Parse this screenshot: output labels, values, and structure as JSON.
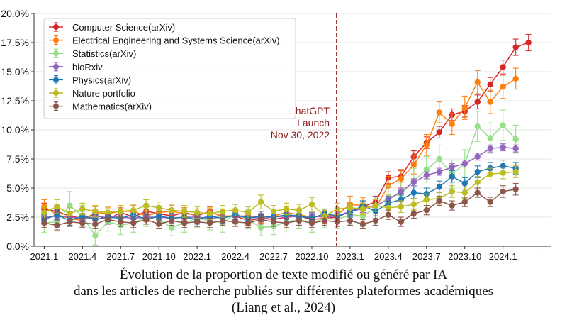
{
  "chart_data": {
    "type": "line",
    "title": "",
    "xlabel": "",
    "ylabel": "",
    "ylim": [
      0,
      20
    ],
    "y_ticks": [
      0,
      2.5,
      5,
      7.5,
      10,
      12.5,
      15,
      17.5,
      20
    ],
    "y_tick_labels": [
      "0.0%",
      "2.5%",
      "5.0%",
      "7.5%",
      "10.0%",
      "12.5%",
      "15.0%",
      "17.5%",
      "20.0%"
    ],
    "x_tick_positions": [
      0,
      3,
      6,
      9,
      12,
      15,
      18,
      21,
      24,
      27,
      30,
      33,
      36,
      39
    ],
    "x_tick_labels": [
      "2021.1",
      "2021.4",
      "2021.7",
      "2021.10",
      "2022.1",
      "2022.4",
      "2022.7",
      "2022.10",
      "2023.1",
      "2023.4",
      "2023.7",
      "2023.10",
      "2024.1",
      ""
    ],
    "x_range": [
      -0.8,
      39.8
    ],
    "grid": "horizontal",
    "legend_position": "top-left",
    "annotation": {
      "x": 22.95,
      "lines": [
        "ChatGPT",
        "Launch",
        "Nov 30, 2022"
      ],
      "color": "#8b1a1a"
    },
    "series": [
      {
        "name": "Computer Science(arXiv)",
        "color": "#d62728",
        "values": [
          3.2,
          3.0,
          2.6,
          2.4,
          2.7,
          2.3,
          2.9,
          2.5,
          3.0,
          2.8,
          2.6,
          2.9,
          2.6,
          3.0,
          2.5,
          2.6,
          2.2,
          2.4,
          2.3,
          2.5,
          2.6,
          2.3,
          2.4,
          2.5,
          3.0,
          3.4,
          3.8,
          5.9,
          6.0,
          7.7,
          8.9,
          9.8,
          11.3,
          11.6,
          12.4,
          13.9,
          15.4,
          17.1,
          17.5
        ],
        "errors": [
          0.5,
          0.5,
          0.4,
          0.4,
          0.4,
          0.4,
          0.4,
          0.4,
          0.4,
          0.4,
          0.4,
          0.4,
          0.4,
          0.4,
          0.4,
          0.4,
          0.4,
          0.4,
          0.4,
          0.4,
          0.4,
          0.4,
          0.4,
          0.4,
          0.5,
          0.5,
          0.5,
          0.5,
          0.5,
          0.5,
          0.5,
          0.5,
          0.5,
          0.5,
          0.6,
          0.6,
          0.6,
          0.7,
          0.7
        ]
      },
      {
        "name": "Electrical Engineering and Systems Science(arXiv)",
        "color": "#ff7f0e",
        "values": [
          3.4,
          2.7,
          2.4,
          2.2,
          2.9,
          2.8,
          3.0,
          3.0,
          2.6,
          2.9,
          3.0,
          2.8,
          2.7,
          2.9,
          2.6,
          2.6,
          2.6,
          2.5,
          2.6,
          2.9,
          2.7,
          2.5,
          2.6,
          2.7,
          3.6,
          3.5,
          3.3,
          5.2,
          5.8,
          7.0,
          8.7,
          11.5,
          10.5,
          11.9,
          14.1,
          12.4,
          13.7,
          14.4
        ],
        "errors": [
          0.6,
          0.6,
          0.6,
          0.5,
          0.5,
          0.5,
          0.5,
          0.5,
          0.5,
          0.5,
          0.5,
          0.5,
          0.5,
          0.5,
          0.5,
          0.5,
          0.5,
          0.5,
          0.5,
          0.5,
          0.5,
          0.5,
          0.5,
          0.5,
          0.7,
          0.7,
          0.7,
          0.8,
          0.8,
          0.8,
          0.9,
          0.9,
          0.9,
          1.0,
          1.0,
          1.0,
          1.0,
          0.9
        ]
      },
      {
        "name": "Statistics(arXiv)",
        "color": "#98df8a",
        "values": [
          2.0,
          2.1,
          3.5,
          2.6,
          0.9,
          2.1,
          1.8,
          2.0,
          2.5,
          2.3,
          1.6,
          2.0,
          2.4,
          2.2,
          2.0,
          2.8,
          2.3,
          1.6,
          1.7,
          2.1,
          2.3,
          2.0,
          2.4,
          2.3,
          2.7,
          2.6,
          3.3,
          4.2,
          4.5,
          5.6,
          6.6,
          7.5,
          6.2,
          7.1,
          10.3,
          9.3,
          10.4,
          9.2
        ],
        "errors": [
          0.8,
          0.8,
          1.2,
          0.9,
          0.8,
          0.8,
          0.8,
          0.8,
          0.8,
          0.8,
          0.7,
          0.8,
          0.8,
          0.8,
          0.8,
          0.8,
          0.8,
          0.7,
          0.7,
          0.8,
          0.8,
          0.8,
          0.8,
          0.8,
          0.9,
          0.9,
          0.9,
          1.0,
          1.0,
          1.1,
          1.1,
          1.2,
          1.2,
          1.2,
          1.3,
          1.3,
          1.3,
          1.2
        ]
      },
      {
        "name": "bioRxiv",
        "color": "#9467bd",
        "values": [
          2.5,
          2.6,
          2.5,
          2.4,
          2.5,
          2.6,
          2.5,
          2.4,
          2.5,
          2.5,
          2.4,
          2.5,
          2.5,
          2.4,
          2.5,
          2.6,
          2.5,
          2.4,
          2.5,
          2.6,
          2.5,
          2.6,
          2.5,
          2.6,
          3.0,
          3.2,
          3.5,
          4.0,
          4.7,
          5.5,
          6.1,
          6.4,
          6.8,
          7.1,
          7.7,
          8.4,
          8.5,
          8.4
        ],
        "errors": [
          0.3,
          0.3,
          0.3,
          0.3,
          0.3,
          0.3,
          0.3,
          0.3,
          0.3,
          0.3,
          0.3,
          0.3,
          0.3,
          0.3,
          0.3,
          0.3,
          0.3,
          0.3,
          0.3,
          0.3,
          0.3,
          0.3,
          0.3,
          0.3,
          0.3,
          0.3,
          0.3,
          0.3,
          0.3,
          0.3,
          0.3,
          0.3,
          0.3,
          0.3,
          0.3,
          0.3,
          0.3,
          0.3
        ]
      },
      {
        "name": "Physics(arXiv)",
        "color": "#1f77b4",
        "values": [
          2.3,
          2.7,
          2.2,
          2.6,
          2.3,
          2.5,
          2.4,
          2.7,
          2.3,
          2.6,
          2.4,
          2.5,
          2.3,
          2.6,
          2.4,
          2.7,
          2.4,
          2.6,
          2.5,
          2.7,
          2.6,
          2.4,
          2.8,
          2.6,
          2.9,
          3.5,
          3.0,
          3.7,
          4.0,
          4.6,
          4.5,
          5.1,
          6.0,
          5.4,
          6.4,
          6.7,
          6.9,
          6.7
        ],
        "errors": [
          0.4,
          0.4,
          0.4,
          0.4,
          0.4,
          0.4,
          0.4,
          0.4,
          0.4,
          0.4,
          0.4,
          0.4,
          0.4,
          0.4,
          0.4,
          0.4,
          0.4,
          0.4,
          0.4,
          0.4,
          0.4,
          0.4,
          0.4,
          0.4,
          0.4,
          0.4,
          0.4,
          0.4,
          0.5,
          0.5,
          0.5,
          0.5,
          0.5,
          0.5,
          0.5,
          0.5,
          0.5,
          0.5
        ]
      },
      {
        "name": "Nature portfolio",
        "color": "#bcbd22",
        "values": [
          2.9,
          3.4,
          2.8,
          3.2,
          3.0,
          2.9,
          3.0,
          3.1,
          3.5,
          3.3,
          3.1,
          3.0,
          2.9,
          2.8,
          3.0,
          3.1,
          2.9,
          3.8,
          3.0,
          3.2,
          3.1,
          3.6,
          2.6,
          3.2,
          3.3,
          3.2,
          3.5,
          3.3,
          3.4,
          3.6,
          4.0,
          4.1,
          4.7,
          4.6,
          5.5,
          6.2,
          6.3,
          6.4
        ],
        "errors": [
          0.5,
          0.6,
          0.5,
          0.5,
          0.5,
          0.5,
          0.5,
          0.5,
          0.5,
          0.5,
          0.5,
          0.5,
          0.5,
          0.5,
          0.5,
          0.5,
          0.5,
          0.6,
          0.5,
          0.5,
          0.5,
          0.6,
          0.5,
          0.5,
          0.5,
          0.5,
          0.5,
          0.5,
          0.5,
          0.5,
          0.5,
          0.5,
          0.5,
          0.5,
          0.5,
          0.5,
          0.5,
          0.5
        ]
      },
      {
        "name": "Mathematics(arXiv)",
        "color": "#8c564b",
        "values": [
          2.0,
          1.8,
          2.1,
          2.0,
          1.9,
          2.3,
          2.1,
          2.0,
          2.3,
          1.9,
          2.2,
          2.0,
          2.1,
          2.0,
          2.2,
          2.1,
          2.0,
          2.3,
          2.1,
          2.0,
          2.2,
          2.0,
          2.2,
          2.1,
          2.2,
          1.9,
          2.2,
          2.7,
          2.1,
          2.8,
          3.1,
          3.9,
          3.5,
          3.8,
          4.6,
          3.8,
          4.7,
          4.9
        ],
        "errors": [
          0.4,
          0.4,
          0.4,
          0.4,
          0.4,
          0.4,
          0.4,
          0.4,
          0.4,
          0.4,
          0.4,
          0.4,
          0.4,
          0.4,
          0.4,
          0.4,
          0.4,
          0.4,
          0.4,
          0.4,
          0.4,
          0.4,
          0.4,
          0.4,
          0.4,
          0.4,
          0.4,
          0.4,
          0.4,
          0.4,
          0.4,
          0.4,
          0.4,
          0.4,
          0.4,
          0.4,
          0.5,
          0.5
        ]
      }
    ]
  },
  "caption": {
    "line1": "Évolution de la proportion de texte modifié ou généré par IA",
    "line2": "dans les articles de recherche publiés sur différentes plateformes académiques",
    "line3": "(Liang et al., 2024)"
  }
}
